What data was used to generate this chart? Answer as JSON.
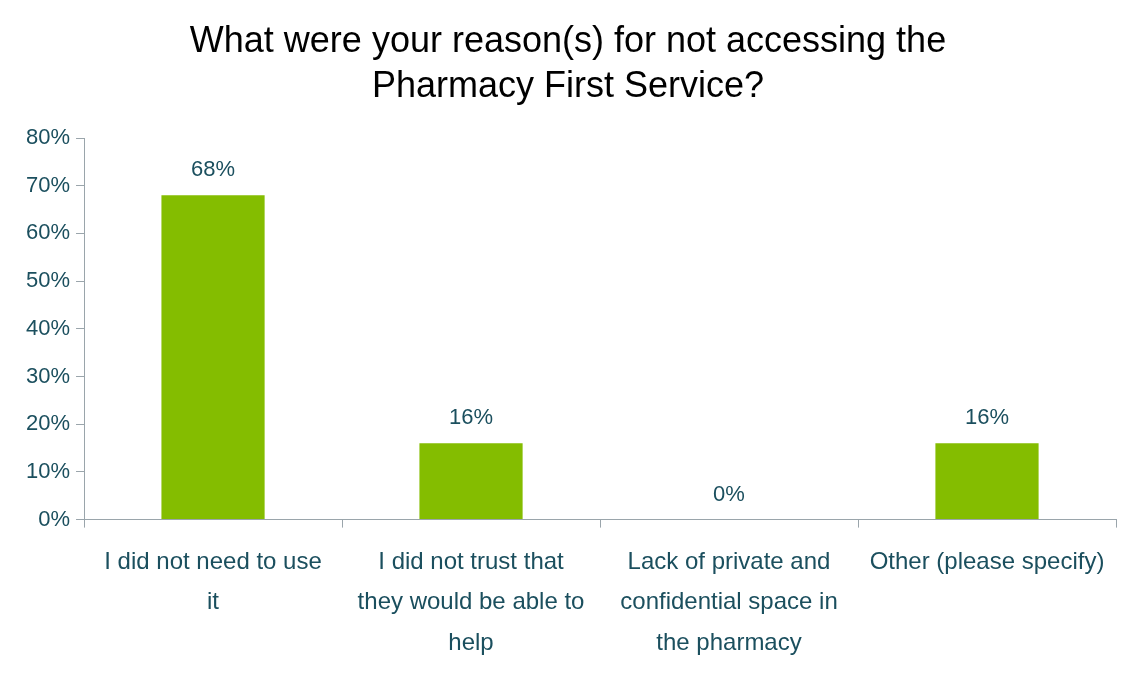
{
  "chart_data": {
    "type": "bar",
    "title": "What were your reason(s) for not accessing the Pharmacy First Service?",
    "categories": [
      "I did not need to use it",
      "I did not trust that they would be able to help",
      "Lack of private and confidential space in the pharmacy",
      "Other (please specify)"
    ],
    "values": [
      68,
      16,
      0,
      16
    ],
    "color": "#84bd00",
    "value_labels": [
      "68%",
      "16%",
      "0%",
      "16%"
    ],
    "ylim": [
      0,
      80
    ],
    "yticks": [
      {
        "value": 0,
        "label": "0%"
      },
      {
        "value": 10,
        "label": "10%"
      },
      {
        "value": 20,
        "label": "20%"
      },
      {
        "value": 30,
        "label": "30%"
      },
      {
        "value": 40,
        "label": "40%"
      },
      {
        "value": 50,
        "label": "50%"
      },
      {
        "value": 60,
        "label": "60%"
      },
      {
        "value": 70,
        "label": "70%"
      },
      {
        "value": 80,
        "label": "80%"
      }
    ],
    "grid": false,
    "legend": false
  }
}
